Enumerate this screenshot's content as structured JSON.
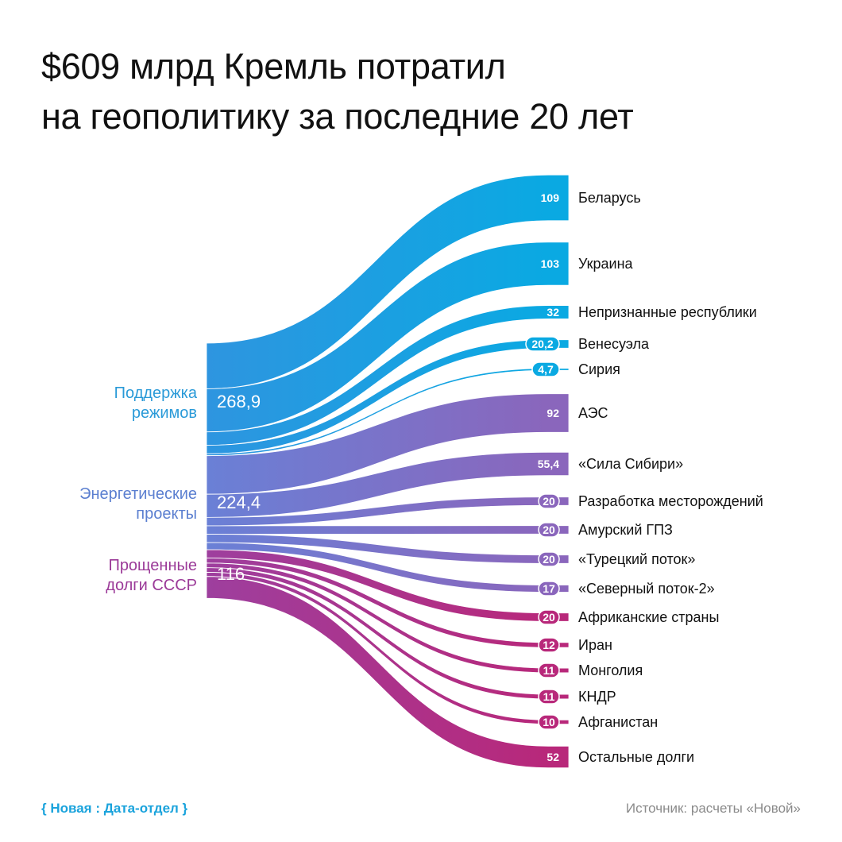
{
  "title": {
    "line1": "$609 млрд Кремль потратил",
    "line2": "на геополитику за последние 20 лет"
  },
  "footer": {
    "credit": "{ Новая : Дата-отдел }",
    "source": "Источник: расчеты «Новой»"
  },
  "chart_data": {
    "type": "sankey",
    "units": "млрд $",
    "sources": [
      {
        "name": "Поддержка режимов",
        "label_lines": [
          "Поддержка",
          "режимов"
        ],
        "value": 268.9,
        "value_label": "268,9",
        "color": "#2e95e0",
        "label_color": "#2a9ad8"
      },
      {
        "name": "Энергетические проекты",
        "label_lines": [
          "Энергетические",
          "проекты"
        ],
        "value": 224.4,
        "value_label": "224,4",
        "color": "#6a80d6",
        "label_color": "#5b7fd0"
      },
      {
        "name": "Прощенные долги СССР",
        "label_lines": [
          "Прощенные",
          "долги СССР"
        ],
        "value": 116,
        "value_label": "116",
        "color": "#9e3f9e",
        "label_color": "#9b3a98"
      }
    ],
    "links": [
      {
        "source": 0,
        "target": "Беларусь",
        "value": 109,
        "value_label": "109",
        "color": "#0aa9e2"
      },
      {
        "source": 0,
        "target": "Украина",
        "value": 103,
        "value_label": "103",
        "color": "#0aa9e2"
      },
      {
        "source": 0,
        "target": "Непризнанные республики",
        "value": 32,
        "value_label": "32",
        "color": "#0aa9e2"
      },
      {
        "source": 0,
        "target": "Венесуэла",
        "value": 20.2,
        "value_label": "20,2",
        "color": "#0aa9e2"
      },
      {
        "source": 0,
        "target": "Сирия",
        "value": 4.7,
        "value_label": "4,7",
        "color": "#0aa9e2"
      },
      {
        "source": 1,
        "target": "АЭС",
        "value": 92,
        "value_label": "92",
        "color": "#8a66bc"
      },
      {
        "source": 1,
        "target": "«Сила Сибири»",
        "value": 55.4,
        "value_label": "55,4",
        "color": "#8a66bc"
      },
      {
        "source": 1,
        "target": "Разработка месторождений",
        "value": 20,
        "value_label": "20",
        "color": "#8a66bc"
      },
      {
        "source": 1,
        "target": "Амурский ГПЗ",
        "value": 20,
        "value_label": "20",
        "color": "#8a66bc"
      },
      {
        "source": 1,
        "target": "«Турецкий поток»",
        "value": 20,
        "value_label": "20",
        "color": "#8a66bc"
      },
      {
        "source": 1,
        "target": "«Северный поток-2»",
        "value": 17,
        "value_label": "17",
        "color": "#8a66bc"
      },
      {
        "source": 2,
        "target": "Африканские страны",
        "value": 20,
        "value_label": "20",
        "color": "#b8287a"
      },
      {
        "source": 2,
        "target": "Иран",
        "value": 12,
        "value_label": "12",
        "color": "#b8287a"
      },
      {
        "source": 2,
        "target": "Монголия",
        "value": 11,
        "value_label": "11",
        "color": "#b8287a"
      },
      {
        "source": 2,
        "target": "КНДР",
        "value": 11,
        "value_label": "11",
        "color": "#b8287a"
      },
      {
        "source": 2,
        "target": "Афганистан",
        "value": 10,
        "value_label": "10",
        "color": "#b8287a"
      },
      {
        "source": 2,
        "target": "Остальные долги",
        "value": 52,
        "value_label": "52",
        "color": "#b8287a"
      }
    ]
  }
}
